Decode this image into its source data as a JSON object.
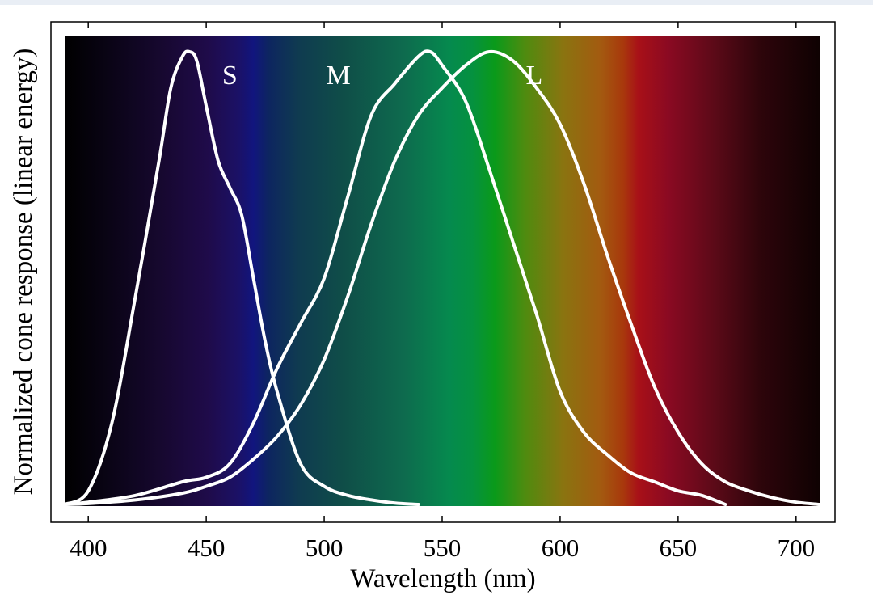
{
  "chart_data": {
    "type": "line",
    "title": "",
    "xlabel": "Wavelength (nm)",
    "ylabel": "Normalized cone response (linear energy)",
    "xlim": [
      390,
      710
    ],
    "ylim": [
      0,
      1.0
    ],
    "xticks": [
      400,
      450,
      500,
      550,
      600,
      650,
      700
    ],
    "grid": false,
    "legend": "none",
    "background": "visible-spectrum gradient",
    "curve_color": "#ffffff",
    "series": [
      {
        "name": "S",
        "x": [
          390,
          400,
          410,
          420,
          430,
          435,
          440,
          443,
          446,
          450,
          455,
          460,
          465,
          470,
          475,
          480,
          490,
          500,
          510,
          520,
          530,
          540
        ],
        "y": [
          0.0,
          0.03,
          0.18,
          0.46,
          0.76,
          0.92,
          0.99,
          1.0,
          0.98,
          0.88,
          0.76,
          0.7,
          0.64,
          0.5,
          0.36,
          0.25,
          0.09,
          0.04,
          0.02,
          0.01,
          0.003,
          0.0
        ]
      },
      {
        "name": "M",
        "x": [
          390,
          400,
          420,
          440,
          450,
          460,
          470,
          480,
          490,
          500,
          510,
          520,
          530,
          540,
          545,
          550,
          560,
          570,
          580,
          590,
          600,
          610,
          620,
          630,
          640,
          650,
          660,
          670
        ],
        "y": [
          0.0,
          0.005,
          0.02,
          0.05,
          0.06,
          0.09,
          0.18,
          0.3,
          0.4,
          0.5,
          0.68,
          0.86,
          0.93,
          0.99,
          1.0,
          0.97,
          0.89,
          0.74,
          0.58,
          0.42,
          0.25,
          0.16,
          0.11,
          0.07,
          0.05,
          0.03,
          0.02,
          0.0
        ]
      },
      {
        "name": "L",
        "x": [
          390,
          400,
          420,
          440,
          450,
          460,
          470,
          480,
          490,
          500,
          510,
          520,
          530,
          540,
          550,
          560,
          570,
          580,
          590,
          600,
          610,
          620,
          630,
          640,
          650,
          660,
          670,
          680,
          690,
          700,
          710
        ],
        "y": [
          0.0,
          0.002,
          0.01,
          0.025,
          0.04,
          0.06,
          0.1,
          0.15,
          0.22,
          0.32,
          0.46,
          0.62,
          0.76,
          0.86,
          0.92,
          0.97,
          1.0,
          0.98,
          0.92,
          0.84,
          0.71,
          0.55,
          0.4,
          0.26,
          0.16,
          0.09,
          0.05,
          0.03,
          0.015,
          0.005,
          0.0
        ]
      }
    ],
    "annotations": [
      {
        "text": "S",
        "x": 460,
        "y": 0.95
      },
      {
        "text": "M",
        "x": 506,
        "y": 0.95
      },
      {
        "text": "L",
        "x": 589,
        "y": 0.95
      }
    ]
  }
}
